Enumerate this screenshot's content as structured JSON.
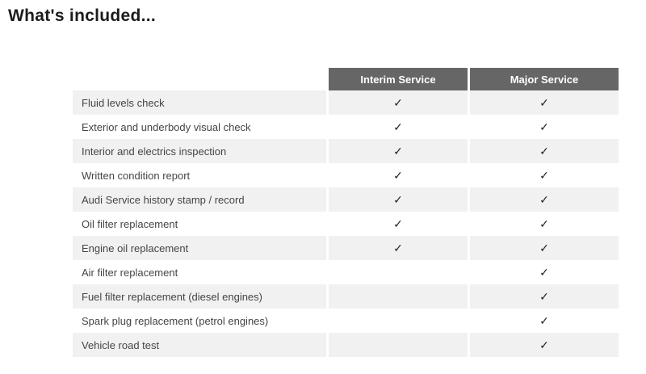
{
  "page": {
    "title": "What's included..."
  },
  "table": {
    "columns": [
      {
        "label": ""
      },
      {
        "label": "Interim Service"
      },
      {
        "label": "Major Service"
      }
    ],
    "check_glyph": "✓",
    "rows": [
      {
        "label": "Fluid levels check",
        "interim": true,
        "major": true
      },
      {
        "label": "Exterior and underbody visual check",
        "interim": true,
        "major": true
      },
      {
        "label": "Interior and electrics inspection",
        "interim": true,
        "major": true
      },
      {
        "label": "Written condition report",
        "interim": true,
        "major": true
      },
      {
        "label": "Audi Service history stamp / record",
        "interim": true,
        "major": true
      },
      {
        "label": "Oil filter replacement",
        "interim": true,
        "major": true
      },
      {
        "label": "Engine oil replacement",
        "interim": true,
        "major": true
      },
      {
        "label": "Air filter replacement",
        "interim": false,
        "major": true
      },
      {
        "label": "Fuel filter replacement (diesel engines)",
        "interim": false,
        "major": true
      },
      {
        "label": "Spark plug replacement (petrol engines)",
        "interim": false,
        "major": true
      },
      {
        "label": "Vehicle road test",
        "interim": false,
        "major": true
      }
    ],
    "colors": {
      "header_bg": "#666666",
      "header_text": "#ffffff",
      "row_alt_bg": "#f1f1f1",
      "row_bg": "#ffffff",
      "label_text": "#454545",
      "check": "#1f2328"
    }
  }
}
